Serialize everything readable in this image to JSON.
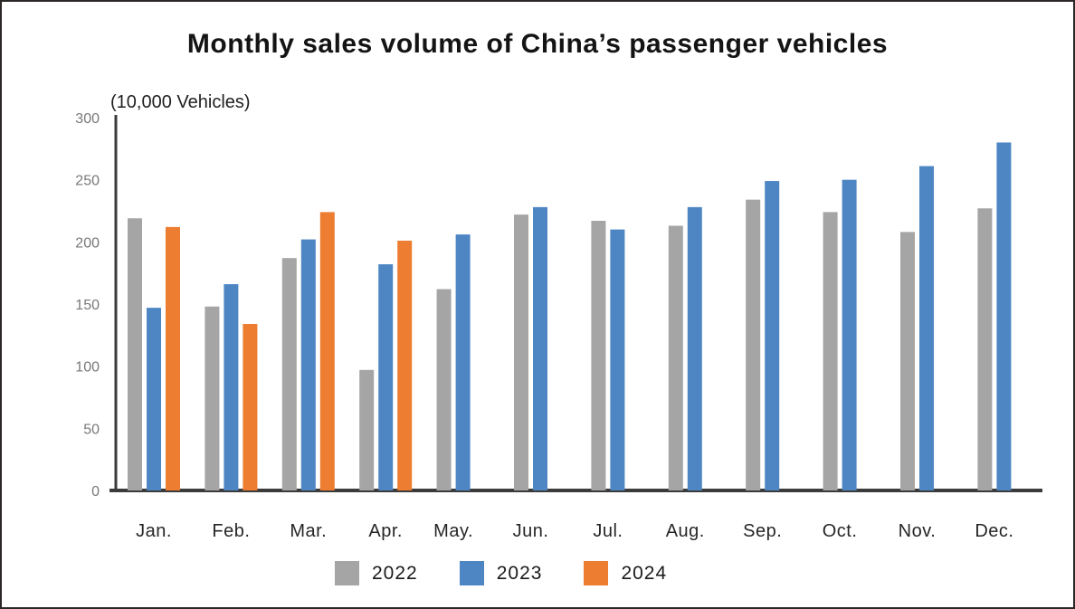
{
  "title": "Monthly sales volume of China’s passenger vehicles",
  "y_axis_unit_label": "(10,000 Vehicles)",
  "chart_data": {
    "type": "bar",
    "title": "Monthly sales volume of China’s passenger vehicles",
    "ylabel": "(10,000 Vehicles)",
    "xlabel": "",
    "categories": [
      "Jan.",
      "Feb.",
      "Mar.",
      "Apr.",
      "May.",
      "Jun.",
      "Jul.",
      "Aug.",
      "Sep.",
      "Oct.",
      "Nov.",
      "Dec."
    ],
    "series": [
      {
        "name": "2022",
        "color": "#a5a5a5",
        "values": [
          219,
          148,
          187,
          97,
          162,
          222,
          217,
          213,
          234,
          224,
          208,
          227
        ]
      },
      {
        "name": "2023",
        "color": "#4e86c4",
        "values": [
          147,
          166,
          202,
          182,
          206,
          228,
          210,
          228,
          249,
          250,
          261,
          280
        ]
      },
      {
        "name": "2024",
        "color": "#ed7d31",
        "values": [
          212,
          134,
          224,
          201,
          null,
          null,
          null,
          null,
          null,
          null,
          null,
          null
        ]
      }
    ],
    "ylim": [
      0,
      300
    ],
    "y_ticks": [
      0,
      50,
      100,
      150,
      200,
      250,
      300
    ],
    "grid": false,
    "legend_position": "bottom",
    "axis_color": "#3b3b3b"
  }
}
